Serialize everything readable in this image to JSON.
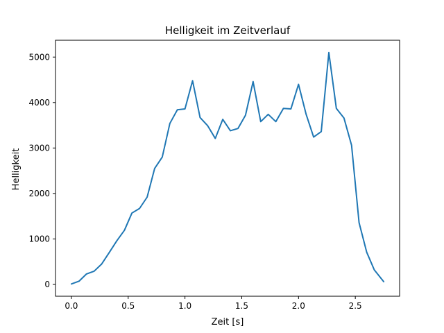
{
  "chart_data": {
    "type": "line",
    "title": "Helligkeit im Zeitverlauf",
    "xlabel": "Zeit [s]",
    "ylabel": "Helligkeit",
    "xlim": [
      -0.14,
      2.89
    ],
    "ylim": [
      -260,
      5370
    ],
    "xticks": [
      0.0,
      0.5,
      1.0,
      1.5,
      2.0,
      2.5
    ],
    "xtick_labels": [
      "0.0",
      "0.5",
      "1.0",
      "1.5",
      "2.0",
      "2.5"
    ],
    "yticks": [
      0,
      1000,
      2000,
      3000,
      4000,
      5000
    ],
    "ytick_labels": [
      "0",
      "1000",
      "2000",
      "3000",
      "4000",
      "5000"
    ],
    "grid": false,
    "series": [
      {
        "color": "#1f77b4",
        "x": [
          0.0,
          0.067,
          0.133,
          0.2,
          0.267,
          0.333,
          0.4,
          0.467,
          0.533,
          0.6,
          0.667,
          0.733,
          0.8,
          0.867,
          0.933,
          1.0,
          1.067,
          1.133,
          1.2,
          1.267,
          1.333,
          1.4,
          1.467,
          1.533,
          1.6,
          1.667,
          1.733,
          1.8,
          1.867,
          1.933,
          2.0,
          2.067,
          2.133,
          2.2,
          2.267,
          2.333,
          2.4,
          2.467,
          2.533,
          2.6,
          2.667,
          2.75
        ],
        "y": [
          10,
          70,
          230,
          290,
          450,
          700,
          960,
          1190,
          1570,
          1670,
          1920,
          2550,
          2800,
          3540,
          3840,
          3860,
          4480,
          3670,
          3490,
          3210,
          3630,
          3380,
          3430,
          3720,
          4460,
          3580,
          3740,
          3580,
          3870,
          3860,
          4400,
          3740,
          3240,
          3360,
          5100,
          3870,
          3660,
          3060,
          1360,
          710,
          320,
          60
        ]
      }
    ]
  }
}
